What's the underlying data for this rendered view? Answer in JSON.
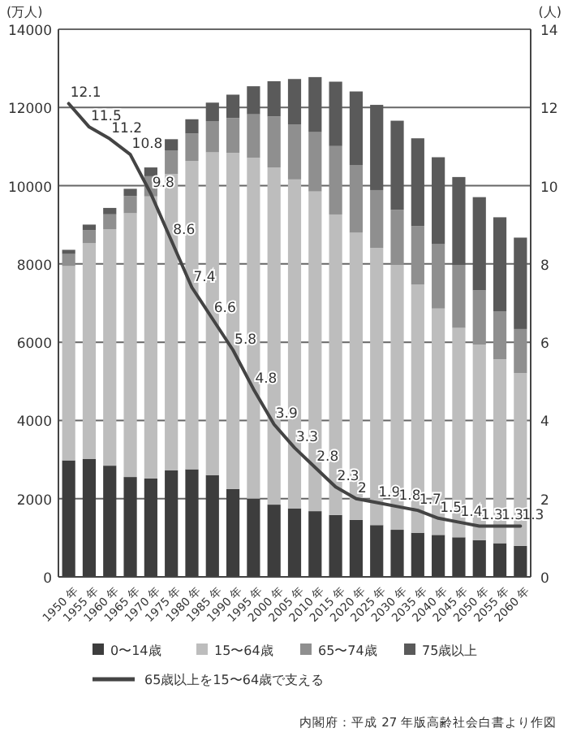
{
  "chart_data": {
    "type": "bar",
    "stacked": true,
    "ylabel": "(万人)",
    "y2label": "(人)",
    "categories": [
      "1950 年",
      "1955 年",
      "1960 年",
      "1965 年",
      "1970 年",
      "1975 年",
      "1980 年",
      "1985 年",
      "1990 年",
      "1995 年",
      "2000 年",
      "2005 年",
      "2010 年",
      "2015 年",
      "2020 年",
      "2025 年",
      "2030 年",
      "2035 年",
      "2040 年",
      "2045 年",
      "2050 年",
      "2055 年",
      "2060 年"
    ],
    "series": [
      {
        "name": "0〜14歳",
        "color": "#3d3d3d",
        "values": [
          2979,
          3012,
          2843,
          2553,
          2515,
          2722,
          2751,
          2603,
          2249,
          2001,
          1847,
          1752,
          1680,
          1583,
          1457,
          1324,
          1204,
          1129,
          1073,
          1012,
          939,
          861,
          791
        ]
      },
      {
        "name": "15〜64歳",
        "color": "#bdbdbd",
        "values": [
          4966,
          5517,
          6047,
          6744,
          7212,
          7581,
          7883,
          8251,
          8590,
          8716,
          8622,
          8409,
          8173,
          7682,
          7341,
          7085,
          6773,
          6343,
          5787,
          5353,
          5001,
          4706,
          4418
        ]
      },
      {
        "name": "65〜74歳",
        "color": "#8f8f8f",
        "values": [
          309,
          338,
          379,
          437,
          516,
          602,
          699,
          799,
          892,
          1109,
          1301,
          1407,
          1517,
          1749,
          1733,
          1479,
          1407,
          1495,
          1645,
          1600,
          1383,
          1225,
          1128
        ]
      },
      {
        "name": "75歳以上",
        "color": "#5a5a5a",
        "values": [
          107,
          139,
          163,
          187,
          224,
          284,
          366,
          471,
          597,
          717,
          901,
          1160,
          1407,
          1646,
          1879,
          2179,
          2278,
          2245,
          2223,
          2257,
          2385,
          2401,
          2336
        ]
      },
      {
        "name": "65歳以上を15〜64歳で支える",
        "type": "line",
        "axis": "y2",
        "color": "#444444",
        "values": [
          12.1,
          11.5,
          11.2,
          10.8,
          9.8,
          8.6,
          7.4,
          6.6,
          5.8,
          4.8,
          3.9,
          3.3,
          2.8,
          2.3,
          2,
          1.9,
          1.8,
          1.7,
          1.5,
          1.4,
          1.3,
          1.3,
          1.3
        ],
        "value_labels": [
          "12.1",
          "11.5",
          "11.2",
          "10.8",
          "9.8",
          "8.6",
          "7.4",
          "6.6",
          "5.8",
          "4.8",
          "3.9",
          "3.3",
          "2.8",
          "2.3",
          "2",
          "1.9",
          "1.8",
          "1.7",
          "1.5",
          "1.4",
          "1.3",
          "1.3",
          "1.3"
        ]
      }
    ],
    "ylim": [
      0,
      14000
    ],
    "yticks": [
      0,
      2000,
      4000,
      6000,
      8000,
      10000,
      12000,
      14000
    ],
    "y2lim": [
      0,
      14
    ],
    "y2ticks": [
      0,
      2,
      4,
      6,
      8,
      10,
      12,
      14
    ],
    "grid": "y",
    "legend": "bottom",
    "annotations": [
      "内閣府：平成 27 年版高齢社会白書より作図"
    ]
  }
}
